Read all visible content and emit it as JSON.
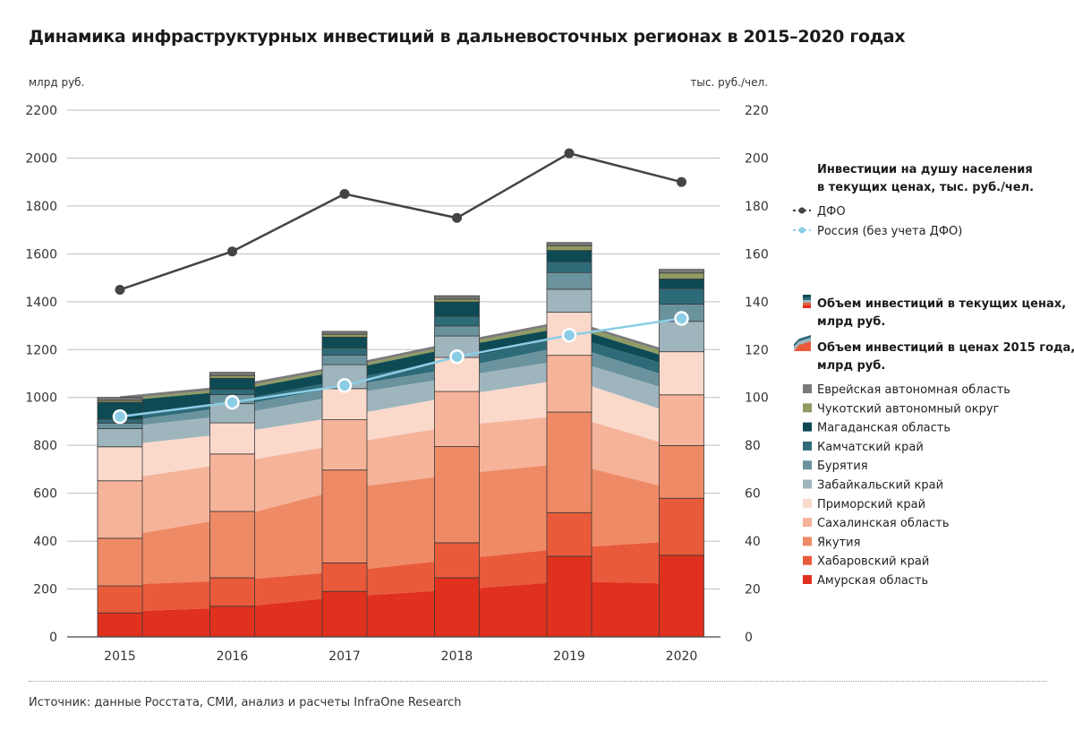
{
  "title": "Динамика инфраструктурных инвестиций в дальневосточных регионах в 2015–2020 годах",
  "source": "Источник: данные Росстата, СМИ, анализ и расчеты InfraOne Research",
  "chart_data": {
    "type": "bar",
    "categories": [
      "2015",
      "2016",
      "2017",
      "2018",
      "2019",
      "2020"
    ],
    "ylabel_left": "млрд руб.",
    "ylabel_right": "тыс. руб./чел.",
    "ylim_left": [
      0,
      2200
    ],
    "yticks_left": [
      0,
      200,
      400,
      600,
      800,
      1000,
      1200,
      1400,
      1600,
      1800,
      2000,
      2200
    ],
    "ylim_right": [
      0,
      220
    ],
    "yticks_right": [
      0,
      20,
      40,
      60,
      80,
      100,
      120,
      140,
      160,
      180,
      200,
      220
    ],
    "regions": [
      {
        "name": "Амурская область",
        "color": "#e0301e",
        "current": [
          100,
          128,
          190,
          247,
          337,
          341
        ],
        "const2015": [
          105,
          122,
          168,
          197,
          232,
          222
        ]
      },
      {
        "name": "Хабаровский край",
        "color": "#e95a3b",
        "current": [
          113,
          119,
          119,
          146,
          182,
          238
        ],
        "const2015": [
          113,
          113,
          106,
          127,
          139,
          179
        ]
      },
      {
        "name": "Якутия",
        "color": "#ef8a66",
        "current": [
          199,
          277,
          388,
          402,
          420,
          220
        ],
        "const2015": [
          199,
          263,
          345,
          355,
          355,
          208
        ]
      },
      {
        "name": "Сахалинская область",
        "color": "#f5b39a",
        "current": [
          240,
          240,
          210,
          230,
          237,
          212
        ],
        "const2015": [
          240,
          228,
          187,
          203,
          200,
          178
        ]
      },
      {
        "name": "Приморский край",
        "color": "#fad9cb",
        "current": [
          142,
          130,
          130,
          142,
          180,
          180
        ],
        "const2015": [
          142,
          124,
          116,
          125,
          152,
          135
        ]
      },
      {
        "name": "Забайкальский край",
        "color": "#9fb5be",
        "current": [
          76,
          80,
          100,
          90,
          96,
          127
        ],
        "const2015": [
          76,
          76,
          89,
          79,
          81,
          95
        ]
      },
      {
        "name": "Бурятия",
        "color": "#6b939e",
        "current": [
          23,
          38,
          40,
          42,
          70,
          72
        ],
        "const2015": [
          23,
          36,
          36,
          37,
          59,
          54
        ]
      },
      {
        "name": "Камчатский край",
        "color": "#2e6b78",
        "current": [
          17,
          23,
          30,
          40,
          45,
          65
        ],
        "const2015": [
          17,
          22,
          27,
          35,
          38,
          49
        ]
      },
      {
        "name": "Магаданская область",
        "color": "#0d4a53",
        "current": [
          70,
          45,
          45,
          60,
          47,
          40
        ],
        "const2015": [
          70,
          43,
          40,
          53,
          40,
          30
        ]
      },
      {
        "name": "Чукотский автономный округ",
        "color": "#8e9b63",
        "current": [
          8,
          12,
          12,
          12,
          20,
          25
        ],
        "const2015": [
          8,
          11,
          11,
          11,
          17,
          19
        ]
      },
      {
        "name": "Еврейская автономная область",
        "color": "#7a7a7a",
        "current": [
          12,
          13,
          12,
          14,
          13,
          15
        ],
        "const2015": [
          12,
          12,
          11,
          12,
          11,
          11
        ]
      }
    ],
    "per_capita": [
      {
        "name": "ДФО",
        "color": "#444444",
        "values": [
          145,
          161,
          185,
          175,
          202,
          190
        ]
      },
      {
        "name": "Россия (без учета ДФО)",
        "color": "#8ccde6",
        "values": [
          92,
          98,
          105,
          117,
          126,
          133
        ]
      }
    ],
    "legend": {
      "per_capita_title": "Инвестиции на душу населения в текущих ценах, тыс. руб./чел.",
      "current_title": "Объем инвестиций в текущих ценах, млрд руб.",
      "const_title": "Объем инвестиций в ценах 2015 года, млрд руб."
    }
  }
}
